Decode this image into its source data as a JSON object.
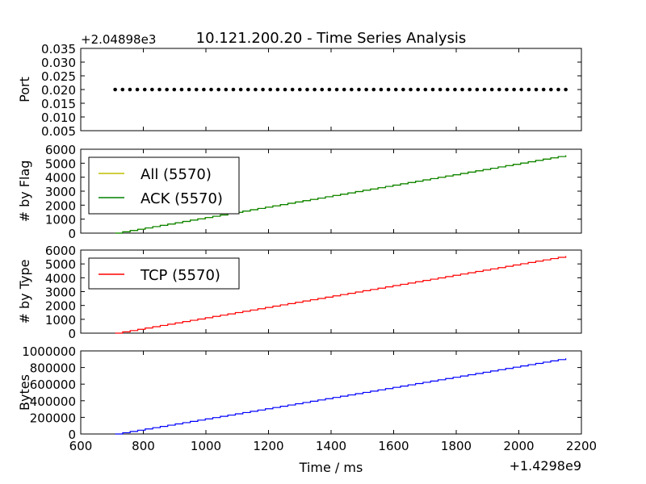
{
  "title": "10.121.200.20 - Time Series Analysis",
  "x_label": "Time / ms",
  "x_offset_label": "+1.4298e9",
  "x_ticks": [
    "600",
    "800",
    "1000",
    "1200",
    "1400",
    "1600",
    "1800",
    "2000",
    "2200"
  ],
  "chart_data": [
    {
      "type": "scatter",
      "ylabel": "Port",
      "offset_label": "+2.04898e3",
      "ylim": [
        0.005,
        0.035
      ],
      "yticks": [
        "0.005",
        "0.010",
        "0.015",
        "0.020",
        "0.025",
        "0.030",
        "0.035"
      ],
      "xlim": [
        600,
        2200
      ],
      "series": [
        {
          "color": "#000000",
          "x_range": [
            710,
            2150
          ],
          "count": 62,
          "y": 0.02
        }
      ]
    },
    {
      "type": "line",
      "ylabel": "# by Flag",
      "ylim": [
        0,
        6000
      ],
      "yticks": [
        "0",
        "1000",
        "2000",
        "3000",
        "4000",
        "5000",
        "6000"
      ],
      "xlim": [
        600,
        2200
      ],
      "legend": "upper-left",
      "series": [
        {
          "name": "All (5570)",
          "color": "#bfbf00",
          "x": [
            710,
            2150
          ],
          "y": [
            0,
            5570
          ]
        },
        {
          "name": "ACK (5570)",
          "color": "#008000",
          "x": [
            710,
            2150
          ],
          "y": [
            0,
            5570
          ]
        }
      ]
    },
    {
      "type": "line",
      "ylabel": "# by Type",
      "ylim": [
        0,
        6000
      ],
      "yticks": [
        "0",
        "1000",
        "2000",
        "3000",
        "4000",
        "5000",
        "6000"
      ],
      "xlim": [
        600,
        2200
      ],
      "legend": "upper-left",
      "series": [
        {
          "name": "TCP (5570)",
          "color": "#ff0000",
          "x": [
            710,
            2150
          ],
          "y": [
            0,
            5570
          ]
        }
      ]
    },
    {
      "type": "line",
      "ylabel": "Bytes",
      "ylim": [
        0,
        1000000
      ],
      "yticks": [
        "0",
        "200000",
        "400000",
        "600000",
        "800000",
        "1000000"
      ],
      "xlim": [
        600,
        2200
      ],
      "series": [
        {
          "color": "#0000ff",
          "x": [
            710,
            2150
          ],
          "y": [
            0,
            910000
          ]
        }
      ]
    }
  ]
}
